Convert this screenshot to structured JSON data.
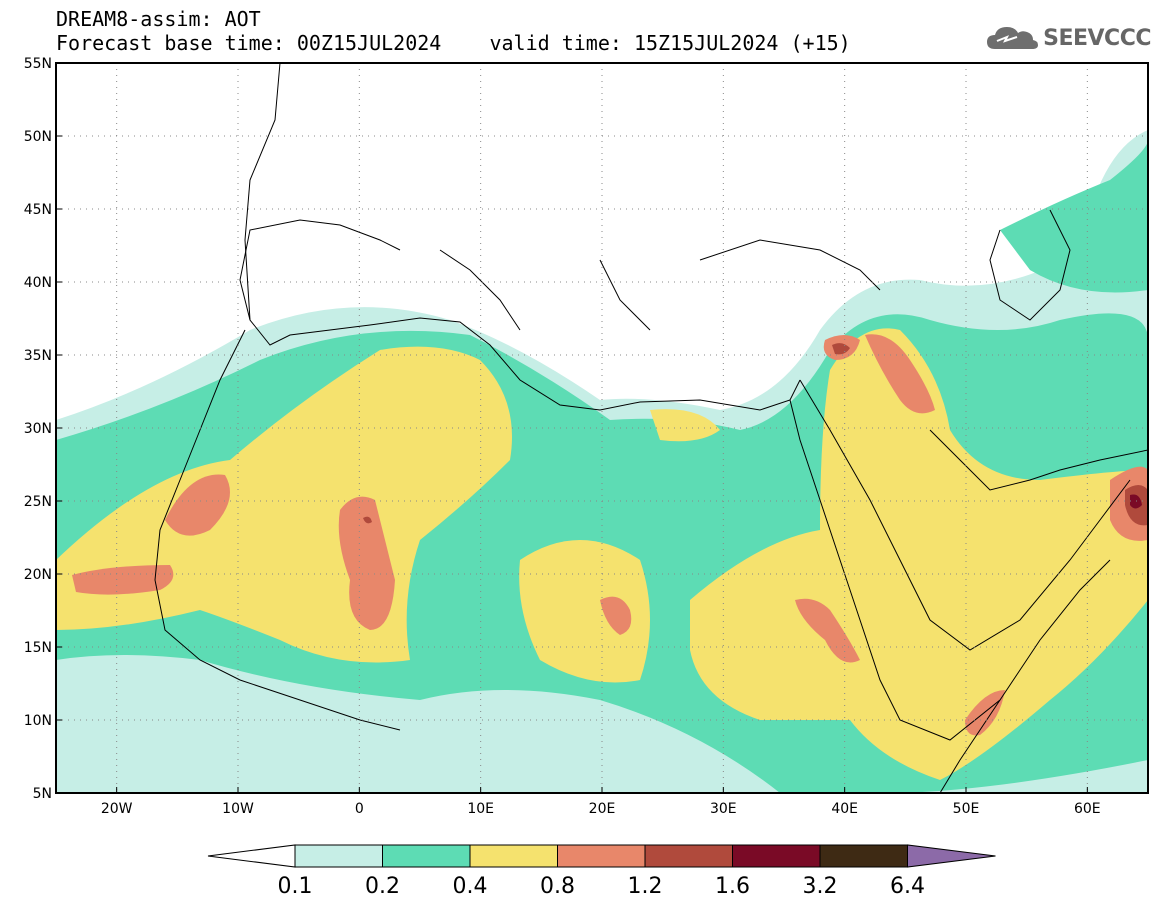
{
  "title": {
    "line1": "DREAM8-assim: AOT",
    "line2": "Forecast base time: 00Z15JUL2024    valid time: 15Z15JUL2024 (+15)"
  },
  "logo": {
    "text": "SEEVCCC",
    "icon": "cloud-icon",
    "color": "#666666"
  },
  "map": {
    "lon_range": [
      -25,
      65
    ],
    "lat_range": [
      5,
      55
    ],
    "lon_ticks": [
      {
        "value": -20,
        "label": "20W"
      },
      {
        "value": -10,
        "label": "10W"
      },
      {
        "value": 0,
        "label": "0"
      },
      {
        "value": 10,
        "label": "10E"
      },
      {
        "value": 20,
        "label": "20E"
      },
      {
        "value": 30,
        "label": "30E"
      },
      {
        "value": 40,
        "label": "40E"
      },
      {
        "value": 50,
        "label": "50E"
      },
      {
        "value": 60,
        "label": "60E"
      }
    ],
    "lat_ticks": [
      {
        "value": 55,
        "label": "55N"
      },
      {
        "value": 50,
        "label": "50N"
      },
      {
        "value": 45,
        "label": "45N"
      },
      {
        "value": 40,
        "label": "40N"
      },
      {
        "value": 35,
        "label": "35N"
      },
      {
        "value": 30,
        "label": "30N"
      },
      {
        "value": 25,
        "label": "25N"
      },
      {
        "value": 20,
        "label": "20N"
      },
      {
        "value": 15,
        "label": "15N"
      },
      {
        "value": 10,
        "label": "10N"
      },
      {
        "value": 5,
        "label": "5N"
      }
    ],
    "grid": "dotted"
  },
  "colorbar": {
    "levels": [
      "0.1",
      "0.2",
      "0.4",
      "0.8",
      "1.2",
      "1.6",
      "3.2",
      "6.4"
    ],
    "colors": [
      "#ffffff",
      "#c6eee6",
      "#5ddcb4",
      "#f5e26e",
      "#e8876a",
      "#b04a3c",
      "#7a0a26",
      "#3e2a14",
      "#8c6aa8"
    ]
  }
}
